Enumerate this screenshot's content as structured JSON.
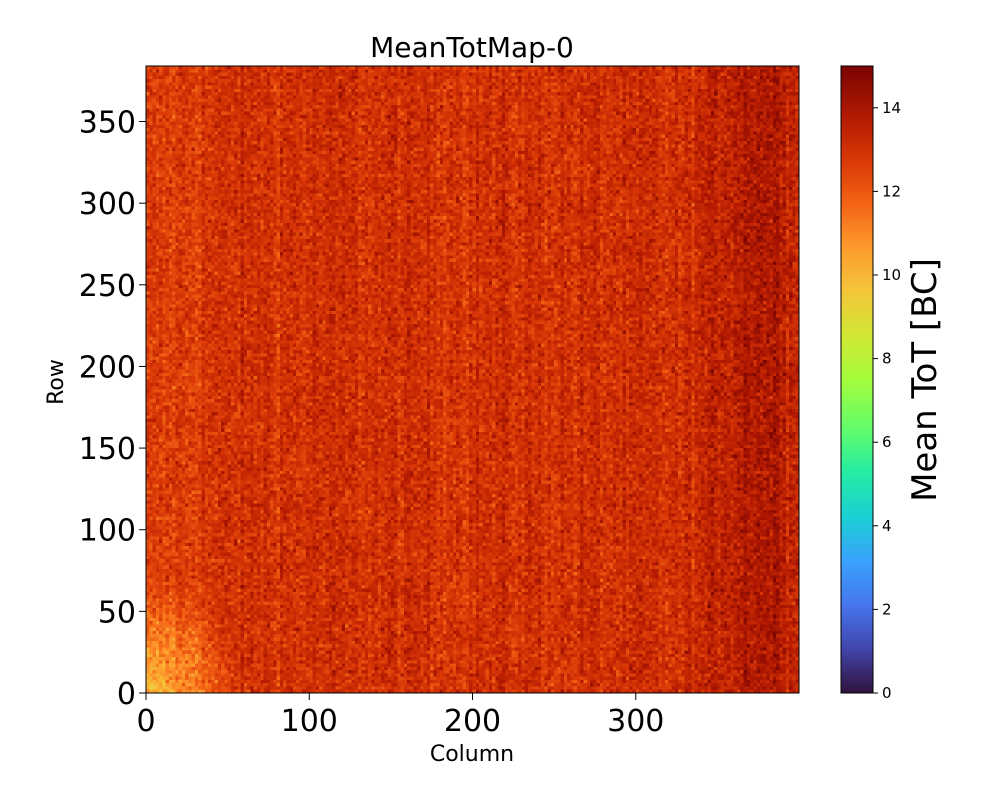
{
  "chart_data": {
    "type": "heatmap",
    "title": "MeanTotMap-0",
    "xlabel": "Column",
    "ylabel": "Row",
    "xlim": [
      0,
      400
    ],
    "ylim": [
      0,
      384
    ],
    "x_ticks": [
      0,
      100,
      200,
      300
    ],
    "y_ticks": [
      0,
      50,
      100,
      150,
      200,
      250,
      300,
      350
    ],
    "colorbar": {
      "label": "Mean ToT [BC]",
      "range": [
        0,
        15
      ],
      "ticks": [
        0,
        2,
        4,
        6,
        8,
        10,
        12,
        14
      ],
      "colormap": "turbo"
    },
    "grid": false,
    "typical_value": 13,
    "value_range_observed": [
      10,
      15
    ],
    "features": [
      {
        "description": "lower mean ToT region near origin",
        "column_range": [
          0,
          50
        ],
        "row_range": [
          0,
          60
        ],
        "value": 10.5
      },
      {
        "description": "higher mean ToT band on right edge",
        "column_range": [
          360,
          400
        ],
        "row_range": [
          0,
          384
        ],
        "value": 14.2
      }
    ]
  }
}
